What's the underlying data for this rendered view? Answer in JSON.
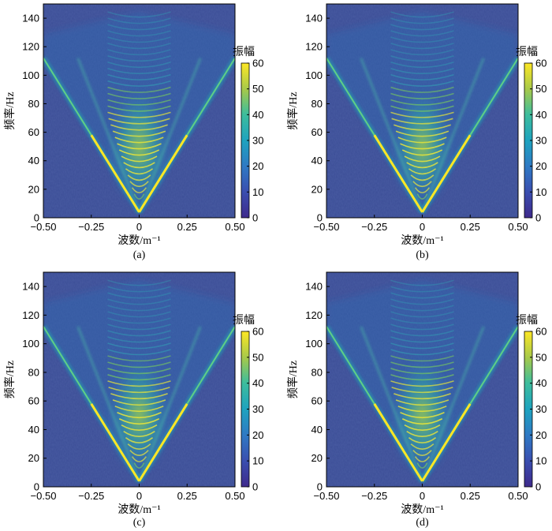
{
  "colors": {
    "background": "#3b4d96",
    "accent_yellow": "#fde725",
    "mid_teal": "#21a4b4"
  },
  "chart_data": [
    {
      "type": "heatmap",
      "panel": "(a)",
      "title": "",
      "xlabel": "波数/m⁻¹",
      "ylabel": "频率/Hz",
      "colorbar_label": "振幅",
      "xlim": [
        -0.5,
        0.5
      ],
      "ylim": [
        0,
        150
      ],
      "clim": [
        0,
        60
      ],
      "xticks": [
        "−0.50",
        "−0.25",
        "0",
        "0.25",
        "0.50"
      ],
      "yticks": [
        "0",
        "20",
        "40",
        "60",
        "80",
        "100",
        "120",
        "140"
      ],
      "cticks": [
        "0",
        "10",
        "20",
        "30",
        "40",
        "50",
        "60"
      ],
      "v_apex_frequency_hz": 4,
      "v_edge_frequency_hz": 112,
      "peak_amplitude": 60
    },
    {
      "type": "heatmap",
      "panel": "(b)",
      "title": "",
      "xlabel": "波数/m⁻¹",
      "ylabel": "频率/Hz",
      "colorbar_label": "振幅",
      "xlim": [
        -0.5,
        0.5
      ],
      "ylim": [
        0,
        150
      ],
      "clim": [
        0,
        60
      ],
      "xticks": [
        "−0.50",
        "−0.25",
        "0",
        "0.25",
        "0.50"
      ],
      "yticks": [
        "0",
        "20",
        "40",
        "60",
        "80",
        "100",
        "120",
        "140"
      ],
      "cticks": [
        "0",
        "10",
        "20",
        "30",
        "40",
        "50",
        "60"
      ],
      "v_apex_frequency_hz": 4,
      "v_edge_frequency_hz": 112,
      "peak_amplitude": 60
    },
    {
      "type": "heatmap",
      "panel": "(c)",
      "title": "",
      "xlabel": "波数/m⁻¹",
      "ylabel": "频率/Hz",
      "colorbar_label": "振幅",
      "xlim": [
        -0.5,
        0.5
      ],
      "ylim": [
        0,
        150
      ],
      "clim": [
        0,
        60
      ],
      "xticks": [
        "−0.50",
        "−0.25",
        "0",
        "0.25",
        "0.50"
      ],
      "yticks": [
        "0",
        "20",
        "40",
        "60",
        "80",
        "100",
        "120",
        "140"
      ],
      "cticks": [
        "0",
        "10",
        "20",
        "30",
        "40",
        "50",
        "60"
      ],
      "v_apex_frequency_hz": 4,
      "v_edge_frequency_hz": 112,
      "peak_amplitude": 60
    },
    {
      "type": "heatmap",
      "panel": "(d)",
      "title": "",
      "xlabel": "波数/m⁻¹",
      "ylabel": "频率/Hz",
      "colorbar_label": "振幅",
      "xlim": [
        -0.5,
        0.5
      ],
      "ylim": [
        0,
        150
      ],
      "clim": [
        0,
        60
      ],
      "xticks": [
        "−0.50",
        "−0.25",
        "0",
        "0.25",
        "0.50"
      ],
      "yticks": [
        "0",
        "20",
        "40",
        "60",
        "80",
        "100",
        "120",
        "140"
      ],
      "cticks": [
        "0",
        "10",
        "20",
        "30",
        "40",
        "50",
        "60"
      ],
      "v_apex_frequency_hz": 4,
      "v_edge_frequency_hz": 112,
      "peak_amplitude": 60
    }
  ]
}
